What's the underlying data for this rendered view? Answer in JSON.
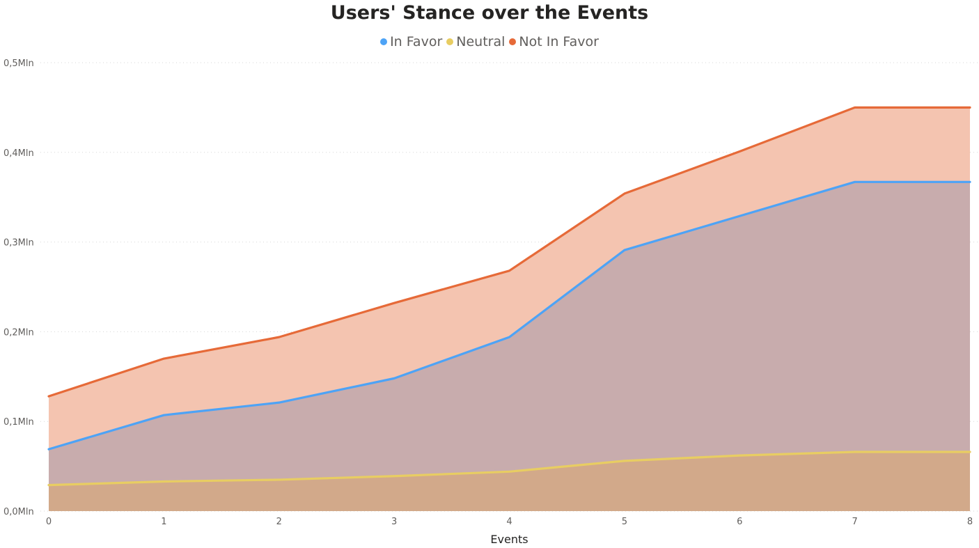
{
  "chart_data": {
    "type": "area",
    "title": "Users' Stance over the Events",
    "xlabel": "Events",
    "ylabel": "",
    "x": [
      0,
      1,
      2,
      3,
      4,
      5,
      6,
      7,
      8
    ],
    "x_tick_labels": [
      "0",
      "1",
      "2",
      "3",
      "4",
      "5",
      "6",
      "7",
      "8"
    ],
    "ylim": [
      0,
      0.5
    ],
    "y_ticks": [
      0,
      0.1,
      0.2,
      0.3,
      0.4,
      0.5
    ],
    "y_tick_labels": [
      "0,0Mln",
      "0,1Mln",
      "0,2Mln",
      "0,3Mln",
      "0,4Mln",
      "0,5Mln"
    ],
    "grid": "horizontal dotted",
    "legend_position": "top-center",
    "series": [
      {
        "name": "In Favor",
        "color": "#4da3f6",
        "fill": "#c8acad",
        "values": [
          0.069,
          0.107,
          0.121,
          0.148,
          0.194,
          0.291,
          0.329,
          0.367,
          0.367
        ]
      },
      {
        "name": "Neutral",
        "color": "#e8cd62",
        "fill": "#d2a98a",
        "values": [
          0.029,
          0.033,
          0.035,
          0.039,
          0.044,
          0.056,
          0.062,
          0.066,
          0.066
        ]
      },
      {
        "name": "Not In Favor",
        "color": "#e66a38",
        "fill": "#f4c4b0",
        "values": [
          0.128,
          0.17,
          0.194,
          0.232,
          0.268,
          0.354,
          0.401,
          0.45,
          0.45
        ]
      }
    ]
  }
}
